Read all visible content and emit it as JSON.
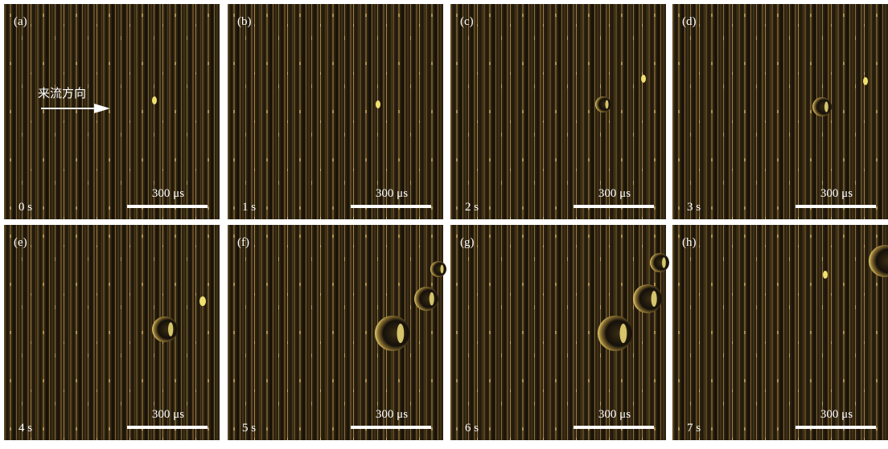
{
  "flow_direction": "来流方向",
  "panels": [
    {
      "label": "(a)",
      "time": "0 s",
      "scale_bar": "300 μs"
    },
    {
      "label": "(b)",
      "time": "1 s",
      "scale_bar": "300 μs"
    },
    {
      "label": "(c)",
      "time": "2 s",
      "scale_bar": "300 μs"
    },
    {
      "label": "(d)",
      "time": "3 s",
      "scale_bar": "300 μs"
    },
    {
      "label": "(e)",
      "time": "4 s",
      "scale_bar": "300 μs"
    },
    {
      "label": "(f)",
      "time": "5 s",
      "scale_bar": "300 μs"
    },
    {
      "label": "(g)",
      "time": "6 s",
      "scale_bar": "300 μs"
    },
    {
      "label": "(h)",
      "time": "7 s",
      "scale_bar": "300 μs"
    }
  ]
}
